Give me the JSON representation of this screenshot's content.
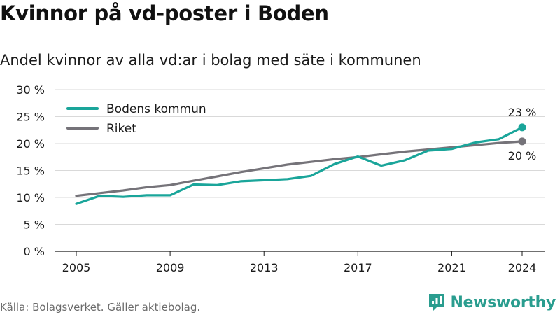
{
  "header": {
    "title": "Kvinnor på vd-poster i Boden",
    "subtitle": "Andel kvinnor av alla vd:ar i bolag med säte i kommunen"
  },
  "footer": {
    "source": "Källa: Bolagsverket. Gäller aktiebolag.",
    "brand": "Newsworthy",
    "brand_icon": "newsworthy-logo-icon"
  },
  "chart_data": {
    "type": "line",
    "x": [
      2005,
      2006,
      2007,
      2008,
      2009,
      2010,
      2011,
      2012,
      2013,
      2014,
      2015,
      2016,
      2017,
      2018,
      2019,
      2020,
      2021,
      2022,
      2023,
      2024
    ],
    "series": [
      {
        "name": "Bodens kommun",
        "color": "#1aa59a",
        "values": [
          8.8,
          10.3,
          10.1,
          10.4,
          10.4,
          12.4,
          12.3,
          13.0,
          13.2,
          13.4,
          14.0,
          16.2,
          17.6,
          15.9,
          16.9,
          18.7,
          19.0,
          20.2,
          20.8,
          23.0
        ]
      },
      {
        "name": "Riket",
        "color": "#757379",
        "values": [
          10.3,
          10.8,
          11.3,
          11.9,
          12.3,
          13.1,
          13.9,
          14.7,
          15.4,
          16.1,
          16.6,
          17.1,
          17.5,
          18.0,
          18.5,
          18.9,
          19.3,
          19.7,
          20.1,
          20.4
        ]
      }
    ],
    "end_labels": [
      "23 %",
      "20 %"
    ],
    "x_ticks": [
      2005,
      2009,
      2013,
      2017,
      2021,
      2024
    ],
    "x_tick_labels": [
      "2005",
      "2009",
      "2013",
      "2017",
      "2021",
      "2024"
    ],
    "y_ticks": [
      0,
      5,
      10,
      15,
      20,
      25,
      30
    ],
    "y_tick_labels": [
      "0 %",
      "5 %",
      "10 %",
      "15 %",
      "20 %",
      "25 %",
      "30 %"
    ],
    "ylim": [
      0,
      30
    ],
    "xlim": [
      2005,
      2024
    ],
    "grid": true,
    "legend_position": "top-left",
    "title": "Kvinnor på vd-poster i Boden",
    "subtitle": "Andel kvinnor av alla vd:ar i bolag med säte i kommunen",
    "xlabel": "",
    "ylabel": ""
  }
}
